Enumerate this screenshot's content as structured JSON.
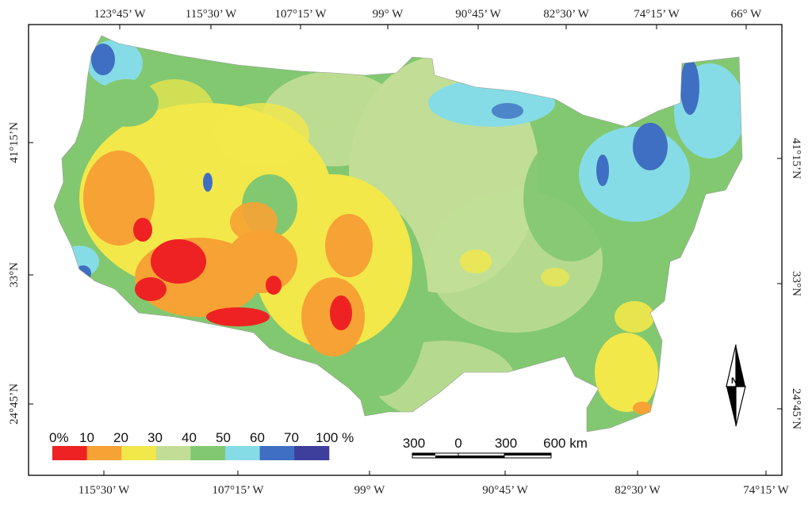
{
  "map": {
    "top_lon_labels": [
      "123°45’ W",
      "115°30’ W",
      "107°15’ W",
      "99° W",
      "90°45’ W",
      "82°30’ W",
      "74°15’ W",
      "66° W"
    ],
    "bottom_lon_labels": [
      "115°30’ W",
      "107°15’ W",
      "99° W",
      "90°45’ W",
      "82°30’ W",
      "74°15’ W"
    ],
    "left_lat_labels": [
      "41°15’N",
      "33°N",
      "24°45’N"
    ],
    "right_lat_labels": [
      "41°15’N",
      "33°N",
      "24°45’N"
    ],
    "north_label": "N"
  },
  "legend": {
    "labels": [
      "0%",
      "10",
      "20",
      "30",
      "40",
      "50",
      "60",
      "70",
      "100 %"
    ],
    "colors": [
      "#ee2222",
      "#f7a234",
      "#f2e84a",
      "#c2de96",
      "#82c870",
      "#86dce6",
      "#3f6fc2",
      "#3e3f9c"
    ]
  },
  "scalebar": {
    "labels": [
      "300",
      "0",
      "300",
      "600 km"
    ]
  }
}
